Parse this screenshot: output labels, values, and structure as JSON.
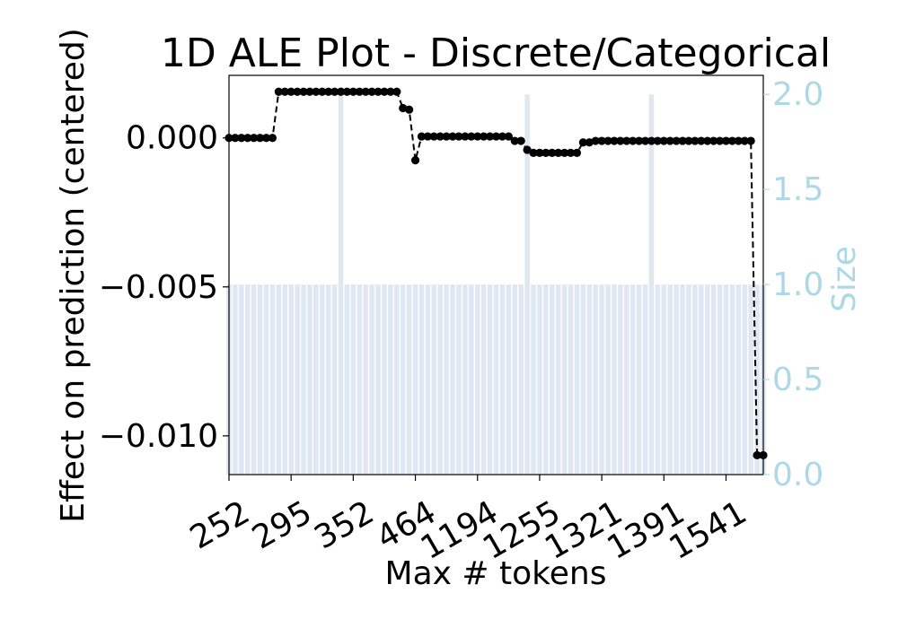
{
  "chart_data": {
    "type": "line",
    "title": "1D ALE Plot - Discrete/Categorical",
    "xlabel": "Max # tokens",
    "ylabel": "Effect on prediction (centered)",
    "y2label": "Size",
    "x_tick_labels": [
      "252",
      "295",
      "352",
      "464",
      "1194",
      "1255",
      "1321",
      "1391",
      "1541"
    ],
    "x_tick_indices": [
      0,
      10,
      20,
      30,
      40,
      50,
      60,
      70,
      80
    ],
    "y_ticks": [
      0.0,
      -0.005,
      -0.01
    ],
    "y_tick_labels": [
      "0.000",
      "−0.005",
      "−0.010"
    ],
    "ylim": [
      -0.0113,
      0.0021
    ],
    "y2_ticks": [
      0.0,
      0.5,
      1.0,
      1.5,
      2.0
    ],
    "y2_tick_labels": [
      "0.0",
      "0.5",
      "1.0",
      "1.5",
      "2.0"
    ],
    "y2lim": [
      0.0,
      2.1
    ],
    "n_categories": 87,
    "ale_series": {
      "name": "ALE",
      "color": "#000000",
      "style": "dashed",
      "marker": "circle",
      "values": [
        0.0,
        0.0,
        0.0,
        0.0,
        0.0,
        0.0,
        0.0,
        0.0,
        0.00155,
        0.00155,
        0.00155,
        0.00155,
        0.00155,
        0.00155,
        0.00155,
        0.00155,
        0.00155,
        0.00155,
        0.00155,
        0.00155,
        0.00155,
        0.00155,
        0.00155,
        0.00155,
        0.00155,
        0.00155,
        0.00155,
        0.00155,
        0.001,
        0.00095,
        -0.00075,
        5e-05,
        5e-05,
        5e-05,
        5e-05,
        5e-05,
        5e-05,
        5e-05,
        5e-05,
        5e-05,
        5e-05,
        5e-05,
        5e-05,
        5e-05,
        5e-05,
        5e-05,
        -0.0001,
        -0.0001,
        -0.0004,
        -0.0005,
        -0.0005,
        -0.0005,
        -0.0005,
        -0.0005,
        -0.0005,
        -0.0005,
        -0.0005,
        -0.00015,
        -0.00015,
        -0.0001,
        -0.0001,
        -0.0001,
        -0.0001,
        -0.0001,
        -0.0001,
        -0.0001,
        -0.0001,
        -0.0001,
        -0.0001,
        -0.0001,
        -0.0001,
        -0.0001,
        -0.0001,
        -0.0001,
        -0.0001,
        -0.0001,
        -0.0001,
        -0.0001,
        -0.0001,
        -0.0001,
        -0.0001,
        -0.0001,
        -0.0001,
        -0.0001,
        -0.0001,
        -0.01065,
        -0.01065
      ]
    },
    "size_series": {
      "name": "Size",
      "color": "#dfe8f2",
      "axis_color": "#add8e6",
      "type": "bar",
      "axis": "right",
      "values": [
        1,
        1,
        1,
        1,
        1,
        1,
        1,
        1,
        1,
        1,
        1,
        1,
        1,
        1,
        1,
        1,
        1,
        1,
        2,
        1,
        1,
        1,
        1,
        1,
        1,
        1,
        1,
        1,
        1,
        1,
        1,
        1,
        1,
        1,
        1,
        1,
        1,
        1,
        1,
        1,
        1,
        1,
        1,
        1,
        1,
        1,
        1,
        1,
        2,
        1,
        1,
        1,
        1,
        1,
        1,
        1,
        1,
        1,
        1,
        1,
        1,
        1,
        1,
        1,
        1,
        1,
        1,
        1,
        2,
        1,
        1,
        1,
        1,
        1,
        1,
        1,
        1,
        1,
        1,
        1,
        1,
        1,
        1,
        1,
        1,
        1,
        1
      ]
    },
    "grid": false
  }
}
